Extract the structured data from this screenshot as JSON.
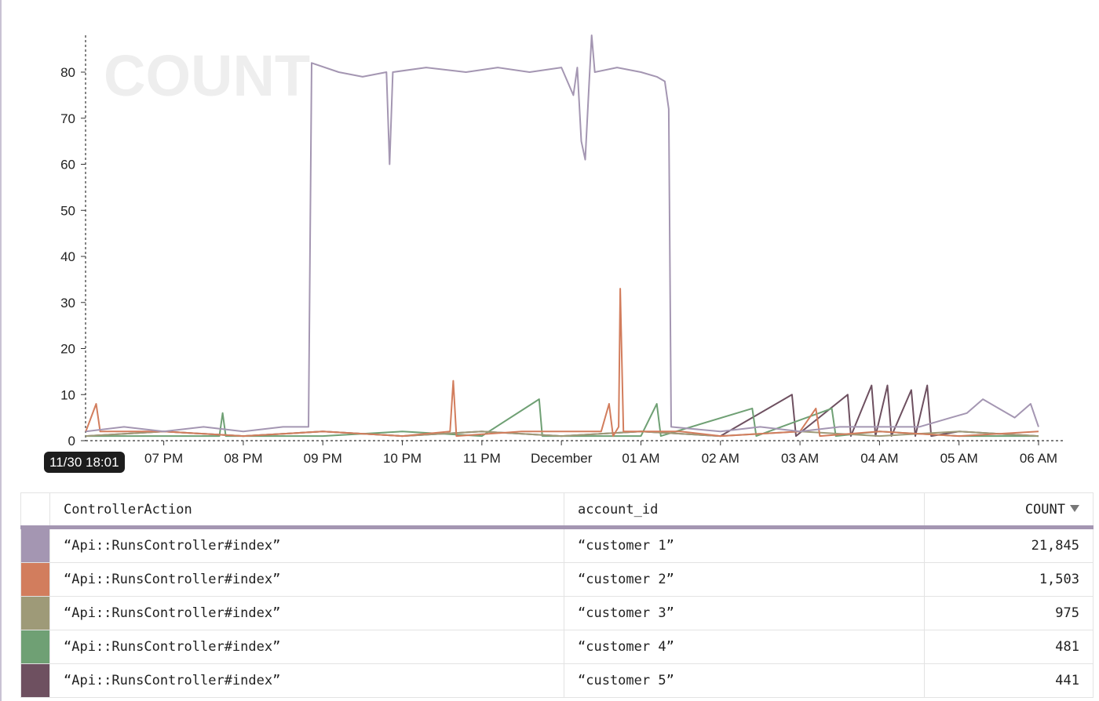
{
  "chart_data": {
    "type": "line",
    "watermark": "COUNT",
    "ylim": [
      0,
      88
    ],
    "yticks": [
      0,
      10,
      20,
      30,
      40,
      50,
      60,
      70,
      80
    ],
    "xlim_hours": [
      18.0167,
      30.0
    ],
    "xticks": [
      {
        "label": "07 PM",
        "hour": 19
      },
      {
        "label": "08 PM",
        "hour": 20
      },
      {
        "label": "09 PM",
        "hour": 21
      },
      {
        "label": "10 PM",
        "hour": 22
      },
      {
        "label": "11 PM",
        "hour": 23
      },
      {
        "label": "December",
        "hour": 24
      },
      {
        "label": "01 AM",
        "hour": 25
      },
      {
        "label": "02 AM",
        "hour": 26
      },
      {
        "label": "03 AM",
        "hour": 27
      },
      {
        "label": "04 AM",
        "hour": 28
      },
      {
        "label": "05 AM",
        "hour": 29
      },
      {
        "label": "06 AM",
        "hour": 30
      }
    ],
    "cursor_label": "11/30 18:01",
    "series": [
      {
        "color": "#a496b2",
        "points": [
          [
            18.02,
            2
          ],
          [
            18.5,
            3
          ],
          [
            19,
            2
          ],
          [
            19.5,
            3
          ],
          [
            20,
            2
          ],
          [
            20.5,
            3
          ],
          [
            20.82,
            3
          ],
          [
            20.86,
            82
          ],
          [
            21.2,
            80
          ],
          [
            21.5,
            79
          ],
          [
            21.8,
            80
          ],
          [
            21.84,
            60
          ],
          [
            21.88,
            80
          ],
          [
            22.3,
            81
          ],
          [
            22.8,
            80
          ],
          [
            23.2,
            81
          ],
          [
            23.6,
            80
          ],
          [
            24.0,
            81
          ],
          [
            24.15,
            75
          ],
          [
            24.2,
            81
          ],
          [
            24.25,
            65
          ],
          [
            24.3,
            61
          ],
          [
            24.35,
            78
          ],
          [
            24.38,
            88
          ],
          [
            24.42,
            80
          ],
          [
            24.7,
            81
          ],
          [
            25.0,
            80
          ],
          [
            25.2,
            79
          ],
          [
            25.3,
            78
          ],
          [
            25.35,
            72
          ],
          [
            25.38,
            3
          ],
          [
            26,
            2
          ],
          [
            26.5,
            3
          ],
          [
            27,
            2
          ],
          [
            27.5,
            3
          ],
          [
            28,
            3
          ],
          [
            28.5,
            3
          ],
          [
            28.9,
            5
          ],
          [
            29.1,
            6
          ],
          [
            29.3,
            9
          ],
          [
            29.5,
            7
          ],
          [
            29.7,
            5
          ],
          [
            29.9,
            8
          ],
          [
            30,
            3
          ]
        ]
      },
      {
        "color": "#d27d5d",
        "points": [
          [
            18.02,
            2
          ],
          [
            18.15,
            8
          ],
          [
            18.2,
            2
          ],
          [
            19,
            2
          ],
          [
            20,
            1
          ],
          [
            21,
            2
          ],
          [
            22,
            1
          ],
          [
            22.6,
            2
          ],
          [
            22.64,
            13
          ],
          [
            22.68,
            1
          ],
          [
            23.5,
            2
          ],
          [
            24.5,
            2
          ],
          [
            24.6,
            8
          ],
          [
            24.65,
            1
          ],
          [
            24.72,
            3
          ],
          [
            24.74,
            33
          ],
          [
            24.78,
            2
          ],
          [
            25.5,
            2
          ],
          [
            26,
            1
          ],
          [
            27,
            2
          ],
          [
            27.2,
            7
          ],
          [
            27.25,
            1
          ],
          [
            28,
            2
          ],
          [
            29,
            1
          ],
          [
            30,
            2
          ]
        ]
      },
      {
        "color": "#9e9a78",
        "points": [
          [
            18.02,
            1
          ],
          [
            19,
            2
          ],
          [
            20,
            1
          ],
          [
            21,
            2
          ],
          [
            22,
            1
          ],
          [
            23,
            2
          ],
          [
            24,
            1
          ],
          [
            25,
            2
          ],
          [
            26,
            1
          ],
          [
            27,
            2
          ],
          [
            28,
            1
          ],
          [
            29,
            2
          ],
          [
            30,
            1
          ]
        ]
      },
      {
        "color": "#6fa074",
        "points": [
          [
            18.02,
            1
          ],
          [
            19.7,
            1
          ],
          [
            19.74,
            6
          ],
          [
            19.78,
            1
          ],
          [
            21,
            1
          ],
          [
            22,
            2
          ],
          [
            23,
            1
          ],
          [
            23.72,
            9
          ],
          [
            23.76,
            1
          ],
          [
            25,
            1
          ],
          [
            25.2,
            8
          ],
          [
            25.25,
            1
          ],
          [
            26.4,
            7
          ],
          [
            26.45,
            1
          ],
          [
            27.4,
            7
          ],
          [
            27.45,
            1
          ],
          [
            28,
            2
          ],
          [
            29,
            1
          ],
          [
            30,
            1
          ]
        ]
      },
      {
        "color": "#6e5060",
        "points": [
          [
            18.02,
            1
          ],
          [
            19,
            2
          ],
          [
            20,
            1
          ],
          [
            21,
            2
          ],
          [
            22,
            1
          ],
          [
            23,
            2
          ],
          [
            24,
            1
          ],
          [
            25,
            2
          ],
          [
            26,
            1
          ],
          [
            26.9,
            10
          ],
          [
            26.95,
            1
          ],
          [
            27.6,
            10
          ],
          [
            27.64,
            1
          ],
          [
            27.9,
            12
          ],
          [
            27.95,
            1
          ],
          [
            28.1,
            12
          ],
          [
            28.15,
            1
          ],
          [
            28.4,
            11
          ],
          [
            28.45,
            1
          ],
          [
            28.6,
            12
          ],
          [
            28.65,
            1
          ],
          [
            29,
            2
          ],
          [
            30,
            1
          ]
        ]
      }
    ]
  },
  "table": {
    "headers": {
      "action": "ControllerAction",
      "account": "account_id",
      "count": "COUNT"
    },
    "rows": [
      {
        "color": "#a496b2",
        "action": "“Api::RunsController#index”",
        "account": "“customer 1”",
        "count": "21,845"
      },
      {
        "color": "#d27d5d",
        "action": "“Api::RunsController#index”",
        "account": "“customer 2”",
        "count": "1,503"
      },
      {
        "color": "#9e9a78",
        "action": "“Api::RunsController#index”",
        "account": "“customer 3”",
        "count": "975"
      },
      {
        "color": "#6fa074",
        "action": "“Api::RunsController#index”",
        "account": "“customer 4”",
        "count": "481"
      },
      {
        "color": "#6e5060",
        "action": "“Api::RunsController#index”",
        "account": "“customer 5”",
        "count": "441"
      }
    ]
  }
}
